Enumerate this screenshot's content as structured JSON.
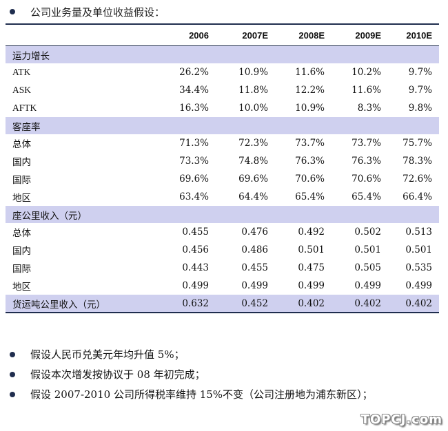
{
  "heading": "公司业务量及单位收益假设：",
  "columns": [
    "",
    "2006",
    "2007E",
    "2008E",
    "2009E",
    "2010E"
  ],
  "sections": [
    {
      "title": "运力增长",
      "rows": [
        {
          "label": "ATK",
          "values": [
            "26.2%",
            "10.9%",
            "11.6%",
            "10.2%",
            "9.7%"
          ]
        },
        {
          "label": "ASK",
          "values": [
            "34.4%",
            "11.8%",
            "12.2%",
            "11.6%",
            "9.7%"
          ]
        },
        {
          "label": "AFTK",
          "values": [
            "16.3%",
            "10.0%",
            "10.9%",
            "8.3%",
            "9.8%"
          ]
        }
      ]
    },
    {
      "title": "客座率",
      "rows": [
        {
          "label": "总体",
          "values": [
            "71.3%",
            "72.3%",
            "73.7%",
            "73.7%",
            "75.7%"
          ]
        },
        {
          "label": "国内",
          "values": [
            "73.3%",
            "74.8%",
            "76.3%",
            "76.3%",
            "78.3%"
          ]
        },
        {
          "label": "国际",
          "values": [
            "69.6%",
            "69.6%",
            "70.6%",
            "70.6%",
            "72.6%"
          ]
        },
        {
          "label": "地区",
          "values": [
            "63.4%",
            "64.4%",
            "65.4%",
            "65.4%",
            "66.4%"
          ]
        }
      ]
    },
    {
      "title": "座公里收入（元）",
      "rows": [
        {
          "label": "总体",
          "values": [
            "0.455",
            "0.476",
            "0.492",
            "0.502",
            "0.513"
          ]
        },
        {
          "label": "国内",
          "values": [
            "0.456",
            "0.486",
            "0.501",
            "0.501",
            "0.501"
          ]
        },
        {
          "label": "国际",
          "values": [
            "0.443",
            "0.455",
            "0.475",
            "0.505",
            "0.535"
          ]
        },
        {
          "label": "地区",
          "values": [
            "0.499",
            "0.499",
            "0.499",
            "0.499",
            "0.499"
          ]
        }
      ]
    }
  ],
  "final_row": {
    "label": "货运吨公里收入（元）",
    "values": [
      "0.632",
      "0.452",
      "0.402",
      "0.402",
      "0.402"
    ]
  },
  "notes": [
    "假设人民币兑美元年均升值 5%；",
    "假设本次增发按协议于 08 年初完成；",
    "假设 2007-2010 公司所得税率维持 15%不变（公司注册地为浦东新区）；"
  ],
  "watermark": "TOPCJ.com"
}
